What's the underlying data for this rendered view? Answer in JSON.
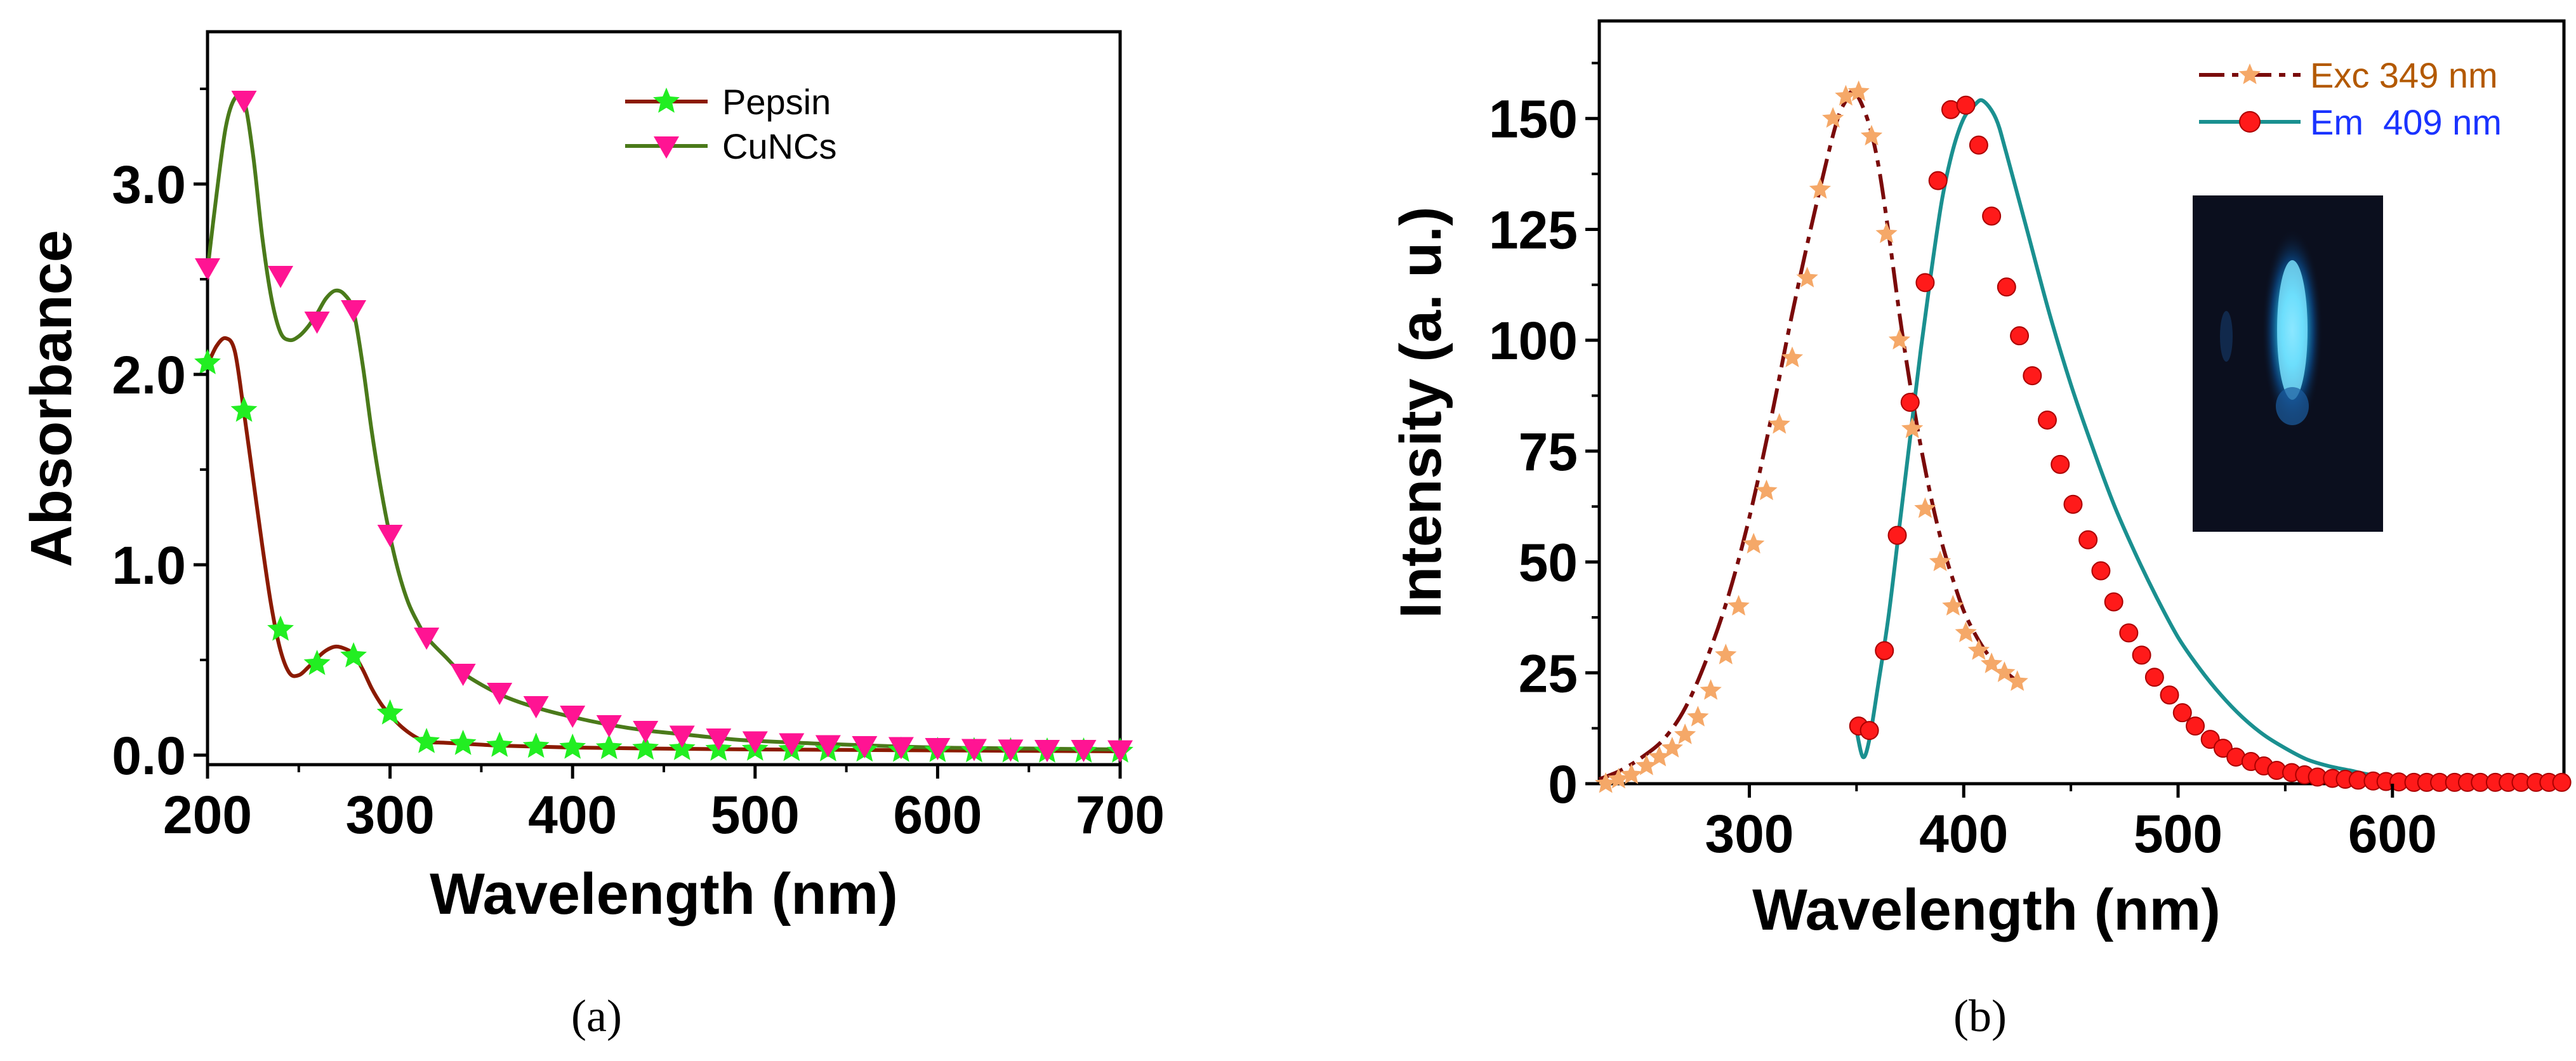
{
  "chart_data": [
    {
      "type": "line",
      "panel_label": "(a)",
      "xlabel": "Wavelength (nm)",
      "ylabel": "Absorbance",
      "xlim": [
        200,
        700
      ],
      "ylim": [
        -0.05,
        3.8
      ],
      "xticks": [
        200,
        300,
        400,
        500,
        600,
        700
      ],
      "xtick_labels": [
        "200",
        "300",
        "400",
        "500",
        "600",
        "700"
      ],
      "yticks": [
        0,
        1,
        2,
        3
      ],
      "ytick_labels": [
        "0.0",
        "1.0",
        "2.0",
        "3.0"
      ],
      "legend_position": "top-center",
      "series": [
        {
          "name": "Pepsin",
          "line_color": "#8b1a00",
          "marker": "star",
          "marker_color": "#22ee22",
          "curve_x": [
            200,
            205,
            210,
            215,
            220,
            225,
            230,
            235,
            240,
            245,
            250,
            255,
            260,
            265,
            270,
            275,
            280,
            285,
            290,
            295,
            300,
            305,
            310,
            315,
            320,
            330,
            340,
            350,
            360,
            380,
            400,
            440,
            500,
            600,
            700
          ],
          "curve_y": [
            2.05,
            2.15,
            2.19,
            2.12,
            1.8,
            1.45,
            1.1,
            0.78,
            0.55,
            0.43,
            0.42,
            0.46,
            0.51,
            0.55,
            0.57,
            0.56,
            0.53,
            0.45,
            0.35,
            0.27,
            0.21,
            0.16,
            0.12,
            0.09,
            0.07,
            0.065,
            0.06,
            0.055,
            0.05,
            0.045,
            0.04,
            0.035,
            0.03,
            0.025,
            0.02
          ],
          "marker_x": [
            200,
            220,
            240,
            260,
            280,
            300,
            320,
            340,
            360,
            380,
            400,
            420,
            440,
            460,
            480,
            500,
            520,
            540,
            560,
            580,
            600,
            620,
            640,
            660,
            680,
            700
          ],
          "marker_y": [
            2.06,
            1.81,
            0.66,
            0.48,
            0.52,
            0.22,
            0.07,
            0.06,
            0.05,
            0.045,
            0.04,
            0.038,
            0.035,
            0.033,
            0.03,
            0.03,
            0.028,
            0.027,
            0.025,
            0.024,
            0.023,
            0.022,
            0.021,
            0.02,
            0.02,
            0.02
          ]
        },
        {
          "name": "CuNCs",
          "line_color": "#4a7a1a",
          "marker": "triangle-down",
          "marker_color": "#ff1493",
          "curve_x": [
            200,
            205,
            210,
            215,
            220,
            225,
            230,
            235,
            240,
            245,
            250,
            255,
            260,
            265,
            270,
            275,
            280,
            285,
            290,
            295,
            300,
            305,
            310,
            315,
            320,
            330,
            340,
            360,
            380,
            400,
            420,
            440,
            460,
            480,
            500,
            550,
            600,
            650,
            700
          ],
          "curve_y": [
            2.55,
            2.95,
            3.3,
            3.45,
            3.44,
            3.15,
            2.72,
            2.4,
            2.22,
            2.18,
            2.2,
            2.25,
            2.32,
            2.4,
            2.44,
            2.42,
            2.33,
            2.05,
            1.7,
            1.4,
            1.15,
            0.95,
            0.8,
            0.7,
            0.62,
            0.52,
            0.43,
            0.32,
            0.25,
            0.2,
            0.16,
            0.13,
            0.11,
            0.09,
            0.075,
            0.055,
            0.04,
            0.035,
            0.03
          ],
          "marker_x": [
            200,
            220,
            240,
            260,
            280,
            300,
            320,
            340,
            360,
            380,
            400,
            420,
            440,
            460,
            480,
            500,
            520,
            540,
            560,
            580,
            600,
            620,
            640,
            660,
            680,
            700
          ],
          "marker_y": [
            2.56,
            3.44,
            2.52,
            2.28,
            2.34,
            1.16,
            0.62,
            0.43,
            0.33,
            0.26,
            0.21,
            0.16,
            0.13,
            0.105,
            0.09,
            0.075,
            0.065,
            0.055,
            0.05,
            0.045,
            0.04,
            0.035,
            0.032,
            0.03,
            0.03,
            0.028
          ]
        }
      ]
    },
    {
      "type": "line",
      "panel_label": "(b)",
      "xlabel": "Wavelength (nm)",
      "ylabel": "Intensity (a. u.)",
      "xlim": [
        230,
        680
      ],
      "ylim": [
        0,
        172
      ],
      "xticks": [
        300,
        400,
        500,
        600
      ],
      "xtick_labels": [
        "300",
        "400",
        "500",
        "600"
      ],
      "yticks": [
        0,
        25,
        50,
        75,
        100,
        125,
        150
      ],
      "ytick_labels": [
        "0",
        "25",
        "50",
        "75",
        "100",
        "125",
        "150"
      ],
      "legend_position": "top-right",
      "inset": "photograph of blue-emitting sample",
      "series": [
        {
          "name": "Exc 349 nm",
          "label_color": "#b35900",
          "line_color": "#7a0a0a",
          "marker": "star",
          "marker_color": "#f5a868",
          "curve_x": [
            230,
            240,
            250,
            260,
            270,
            280,
            290,
            300,
            310,
            320,
            330,
            340,
            345,
            349,
            355,
            360,
            365,
            370,
            375,
            380,
            385,
            390,
            395,
            400,
            405,
            410,
            415,
            420,
            425
          ],
          "curve_y": [
            1,
            3,
            6,
            10,
            17,
            28,
            42,
            60,
            82,
            106,
            128,
            148,
            154,
            156,
            150,
            140,
            124,
            106,
            90,
            76,
            64,
            54,
            46,
            39,
            34,
            30,
            27,
            25,
            23
          ],
          "marker_x": [
            233,
            239,
            245,
            252,
            258,
            264,
            270,
            276,
            282,
            289,
            295,
            302,
            308,
            314,
            320,
            327,
            333,
            339,
            345,
            351,
            357,
            364,
            370,
            376,
            382,
            389,
            395,
            401,
            407,
            413,
            419,
            425
          ],
          "marker_y": [
            0,
            1,
            2,
            4,
            6,
            8,
            11,
            15,
            21,
            29,
            40,
            54,
            66,
            81,
            96,
            114,
            134,
            150,
            155,
            156,
            146,
            124,
            100,
            80,
            62,
            50,
            40,
            34,
            30,
            27,
            25,
            23
          ]
        },
        {
          "name": "Em  409 nm",
          "label_color": "#1a33ff",
          "line_color": "#1a9090",
          "marker": "circle",
          "marker_color": "#ff1a1a",
          "curve_x": [
            350,
            353,
            356,
            360,
            365,
            370,
            375,
            380,
            385,
            390,
            395,
            400,
            405,
            409,
            415,
            420,
            430,
            440,
            450,
            460,
            470,
            480,
            490,
            500,
            510,
            520,
            530,
            540,
            550,
            560,
            570,
            580,
            590,
            600,
            620,
            640,
            660,
            680
          ],
          "curve_y": [
            12,
            6,
            10,
            22,
            38,
            58,
            78,
            98,
            116,
            132,
            143,
            150,
            153,
            154,
            150,
            142,
            124,
            106,
            90,
            76,
            63,
            52,
            42,
            33,
            26,
            20,
            15,
            11,
            8,
            5.5,
            4,
            3,
            2,
            1.5,
            1,
            0.5,
            0.3,
            0.2
          ],
          "marker_x": [
            351,
            356,
            363,
            369,
            375,
            382,
            388,
            394,
            401,
            407,
            413,
            420,
            426,
            432,
            439,
            445,
            451,
            458,
            464,
            470,
            477,
            483,
            489,
            496,
            502,
            508,
            515,
            521,
            527,
            534,
            540,
            546,
            553,
            559,
            565,
            572,
            578,
            584,
            591,
            597,
            603,
            610,
            616,
            622,
            629,
            635,
            641,
            648,
            654,
            660,
            667,
            673,
            679
          ],
          "marker_y": [
            13,
            12,
            30,
            56,
            86,
            113,
            136,
            152,
            153,
            144,
            128,
            112,
            101,
            92,
            82,
            72,
            63,
            55,
            48,
            41,
            34,
            29,
            24,
            20,
            16,
            13,
            10,
            8,
            6,
            5,
            4,
            3,
            2.5,
            2,
            1.5,
            1.2,
            1,
            0.8,
            0.6,
            0.5,
            0.4,
            0.3,
            0.3,
            0.3,
            0.3,
            0.3,
            0.3,
            0.3,
            0.3,
            0.3,
            0.3,
            0.3,
            0.3
          ]
        }
      ]
    }
  ]
}
